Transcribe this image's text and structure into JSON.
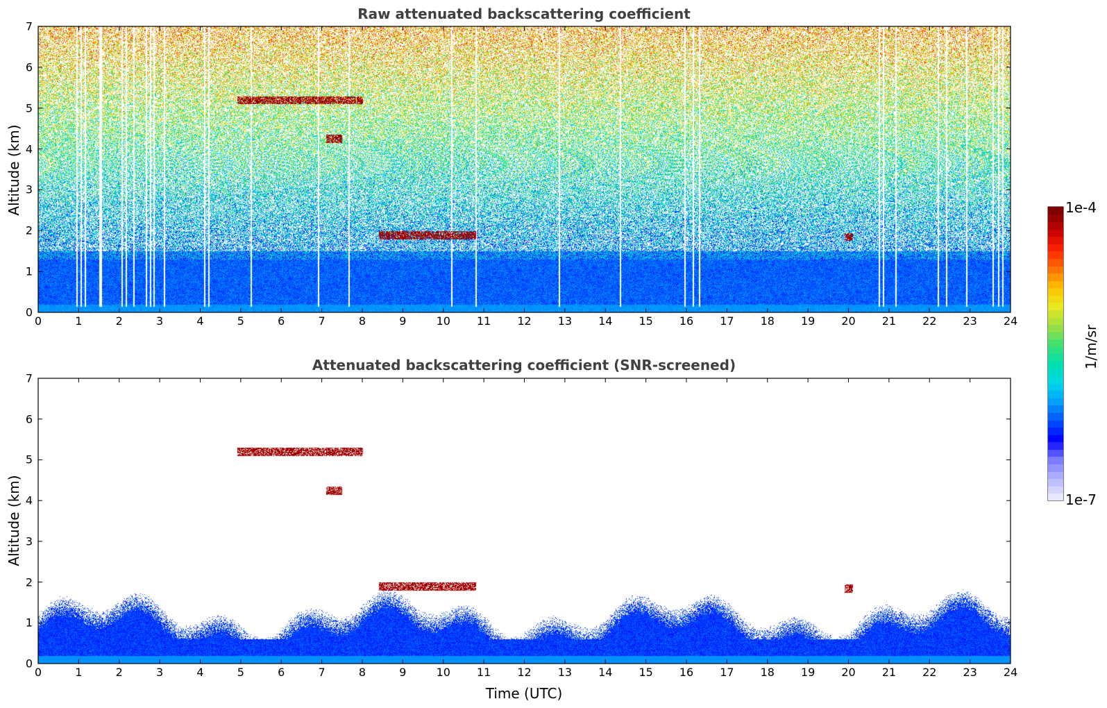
{
  "colors": {
    "colormap": [
      "#e8e8ff",
      "#b4b4ff",
      "#7878ff",
      "#0000ff",
      "#0050ff",
      "#00a0ff",
      "#00d8e8",
      "#00e0b0",
      "#40e070",
      "#a0e040",
      "#e8e820",
      "#ffc000",
      "#ff7000",
      "#ff2000",
      "#c00000",
      "#800000"
    ],
    "axis": "#000000",
    "title": "#404040"
  },
  "chart_data": [
    {
      "type": "heatmap",
      "title": "Raw attenuated backscattering coefficient",
      "xlabel": "",
      "ylabel": "Altitude (km)",
      "xlim": [
        0,
        24
      ],
      "ylim": [
        0,
        7
      ],
      "xticks": [
        "0",
        "1",
        "2",
        "3",
        "4",
        "5",
        "6",
        "7",
        "8",
        "9",
        "10",
        "11",
        "12",
        "13",
        "14",
        "15",
        "16",
        "17",
        "18",
        "19",
        "20",
        "21",
        "22",
        "23",
        "24"
      ],
      "yticks": [
        "0",
        "1",
        "2",
        "3",
        "4",
        "5",
        "6",
        "7"
      ],
      "color_scale": "log",
      "clim": [
        "1e-7",
        "1e-4"
      ],
      "features": {
        "boundary_layer_top_km": 1.3,
        "cloud_layers": [
          {
            "time_start": 4.9,
            "time_end": 8.0,
            "altitude_km": 5.2
          },
          {
            "time_start": 7.1,
            "time_end": 7.5,
            "altitude_km": 4.25
          },
          {
            "time_start": 8.4,
            "time_end": 10.8,
            "altitude_km": 1.9
          },
          {
            "time_start": 19.9,
            "time_end": 20.1,
            "altitude_km": 1.85
          }
        ],
        "missing_data_times": [
          0.95,
          1.05,
          1.15,
          1.5,
          1.55,
          2.05,
          2.15,
          2.35,
          2.65,
          2.75,
          2.85,
          3.1,
          4.1,
          4.2,
          5.25,
          6.9,
          7.65,
          10.2,
          10.8,
          12.85,
          14.35,
          15.95,
          16.15,
          16.3,
          20.75,
          20.85,
          21.15,
          22.2,
          22.4,
          22.9,
          23.55,
          23.7,
          23.8
        ]
      }
    },
    {
      "type": "heatmap",
      "title": "Attenuated backscattering coefficient (SNR-screened)",
      "xlabel": "Time (UTC)",
      "ylabel": "Altitude (km)",
      "xlim": [
        0,
        24
      ],
      "ylim": [
        0,
        7
      ],
      "xticks": [
        "0",
        "1",
        "2",
        "3",
        "4",
        "5",
        "6",
        "7",
        "8",
        "9",
        "10",
        "11",
        "12",
        "13",
        "14",
        "15",
        "16",
        "17",
        "18",
        "19",
        "20",
        "21",
        "22",
        "23",
        "24"
      ],
      "yticks": [
        "0",
        "1",
        "2",
        "3",
        "4",
        "5",
        "6",
        "7"
      ],
      "color_scale": "log",
      "clim": [
        "1e-7",
        "1e-4"
      ],
      "features": {
        "boundary_layer_top_km": 1.0,
        "cloud_layers": [
          {
            "time_start": 4.9,
            "time_end": 8.0,
            "altitude_km": 5.2
          },
          {
            "time_start": 7.1,
            "time_end": 7.5,
            "altitude_km": 4.25
          },
          {
            "time_start": 8.4,
            "time_end": 10.8,
            "altitude_km": 1.9
          },
          {
            "time_start": 19.9,
            "time_end": 20.1,
            "altitude_km": 1.85
          }
        ]
      }
    }
  ],
  "colorbar": {
    "max_label": "1e-4",
    "min_label": "1e-7",
    "unit_label": "1/m/sr"
  }
}
